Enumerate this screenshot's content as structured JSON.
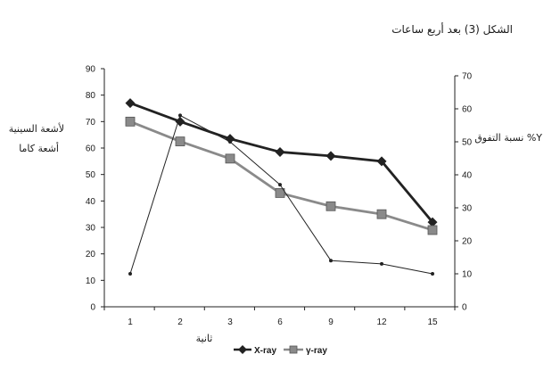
{
  "chart_data": {
    "type": "line",
    "title": "الشكل (3) بعد أربع ساعات",
    "categories": [
      "1",
      "2",
      "3",
      "6",
      "9",
      "12",
      "15"
    ],
    "left_axis": {
      "label_line1": "لأشعة السينية",
      "label_line2": "أشعة كاما",
      "ylim": [
        0,
        90
      ],
      "ticks": [
        "0",
        "10",
        "20",
        "30",
        "40",
        "50",
        "60",
        "70",
        "80",
        "90"
      ]
    },
    "right_axis": {
      "label": "نسبة التفوق %Y",
      "ylim": [
        0,
        70
      ],
      "ticks": [
        "0",
        "10",
        "20",
        "30",
        "40",
        "50",
        "60",
        "70"
      ]
    },
    "xlabel": "ثانية",
    "series": [
      {
        "name": "X-ray",
        "axis": "left",
        "marker": "diamond",
        "color": "#222222",
        "values": [
          77,
          70,
          63.5,
          58.5,
          57,
          55,
          32
        ]
      },
      {
        "name": "γ-ray",
        "axis": "left",
        "marker": "square",
        "color": "#8a8a8a",
        "values": [
          70,
          62.5,
          56,
          43,
          38,
          35,
          29
        ]
      },
      {
        "name": "",
        "axis": "right",
        "marker": "dot",
        "color": "#222222",
        "values": [
          10,
          58,
          50,
          37,
          14,
          13,
          10
        ]
      }
    ],
    "legend_position": "bottom-center"
  }
}
